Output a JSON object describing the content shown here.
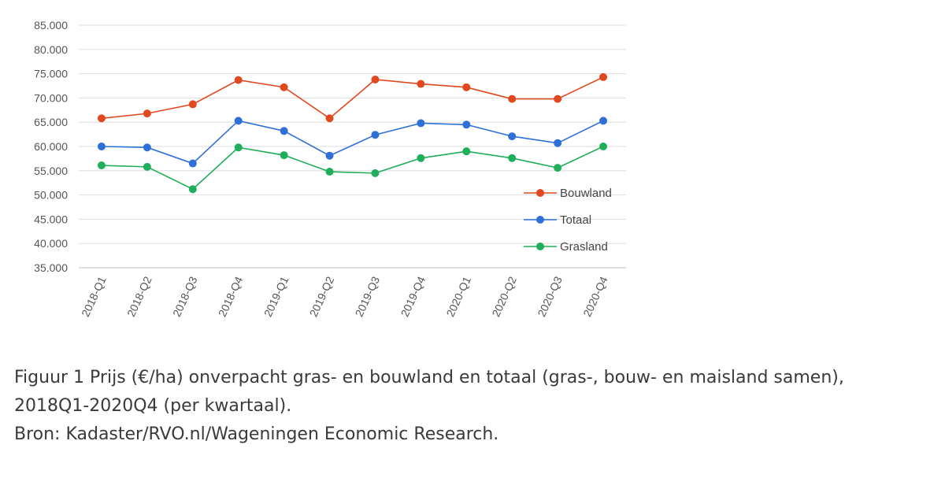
{
  "chart_data": {
    "type": "line",
    "categories": [
      "2018-Q1",
      "2018-Q2",
      "2018-Q3",
      "2018-Q4",
      "2019-Q1",
      "2019-Q2",
      "2019-Q3",
      "2019-Q4",
      "2020-Q1",
      "2020-Q2",
      "2020-Q3",
      "2020-Q4"
    ],
    "series": [
      {
        "name": "Bouwland",
        "color": "#e0481f",
        "values": [
          65800,
          66800,
          68700,
          73700,
          72200,
          65800,
          73800,
          72900,
          72200,
          69800,
          69800,
          74300
        ]
      },
      {
        "name": "Totaal",
        "color": "#2e6fd8",
        "values": [
          60000,
          59800,
          56500,
          65300,
          63200,
          58100,
          62400,
          64800,
          64500,
          62100,
          60700,
          65300
        ]
      },
      {
        "name": "Grasland",
        "color": "#1fae5a",
        "values": [
          56100,
          55800,
          51200,
          59800,
          58200,
          54800,
          54500,
          57600,
          59000,
          57600,
          55600,
          60000
        ]
      }
    ],
    "y_ticks": [
      "35.000",
      "40.000",
      "45.000",
      "50.000",
      "55.000",
      "60.000",
      "65.000",
      "70.000",
      "75.000",
      "80.000",
      "85.000"
    ],
    "ylim": [
      35000,
      85000
    ],
    "grid": true,
    "legend_position": "right"
  },
  "caption": {
    "line1": "Figuur 1 Prijs (€/ha) onverpacht gras- en bouwland en totaal (gras-, bouw- en maisland samen),",
    "line2": "2018Q1-2020Q4 (per kwartaal).",
    "source": "Bron: Kadaster/RVO.nl/Wageningen Economic Research."
  }
}
